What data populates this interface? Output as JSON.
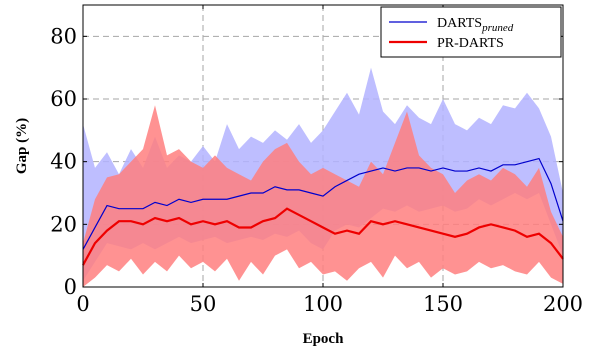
{
  "chart_data": {
    "type": "line",
    "xlabel": "Epoch",
    "ylabel": "Gap (%)",
    "xlim": [
      0,
      200
    ],
    "ylim": [
      0,
      90
    ],
    "xticks": [
      0,
      50,
      100,
      150,
      200
    ],
    "yticks": [
      0,
      20,
      40,
      60,
      80
    ],
    "grid": true,
    "grid_style": "dashed",
    "legend_position": "top-right",
    "series": [
      {
        "name": "DARTS",
        "name_subscript": "pruned",
        "color": "#0000cc",
        "band_color": "#b3b3ff",
        "mean": [
          [
            0,
            12
          ],
          [
            5,
            19
          ],
          [
            10,
            26
          ],
          [
            15,
            25
          ],
          [
            20,
            25
          ],
          [
            25,
            25
          ],
          [
            30,
            27
          ],
          [
            35,
            26
          ],
          [
            40,
            28
          ],
          [
            45,
            27
          ],
          [
            50,
            28
          ],
          [
            55,
            28
          ],
          [
            60,
            28
          ],
          [
            65,
            29
          ],
          [
            70,
            30
          ],
          [
            75,
            30
          ],
          [
            80,
            32
          ],
          [
            85,
            31
          ],
          [
            90,
            31
          ],
          [
            95,
            30
          ],
          [
            100,
            29
          ],
          [
            105,
            32
          ],
          [
            110,
            34
          ],
          [
            115,
            36
          ],
          [
            120,
            37
          ],
          [
            125,
            38
          ],
          [
            130,
            37
          ],
          [
            135,
            38
          ],
          [
            140,
            38
          ],
          [
            145,
            37
          ],
          [
            150,
            38
          ],
          [
            155,
            37
          ],
          [
            160,
            37
          ],
          [
            165,
            38
          ],
          [
            170,
            37
          ],
          [
            175,
            39
          ],
          [
            180,
            39
          ],
          [
            185,
            40
          ],
          [
            190,
            41
          ],
          [
            195,
            33
          ],
          [
            200,
            21
          ]
        ],
        "band_low": [
          [
            0,
            2
          ],
          [
            5,
            8
          ],
          [
            10,
            14
          ],
          [
            15,
            13
          ],
          [
            20,
            12
          ],
          [
            25,
            14
          ],
          [
            30,
            12
          ],
          [
            35,
            14
          ],
          [
            40,
            16
          ],
          [
            45,
            14
          ],
          [
            50,
            15
          ],
          [
            55,
            16
          ],
          [
            60,
            14
          ],
          [
            65,
            15
          ],
          [
            70,
            16
          ],
          [
            75,
            15
          ],
          [
            80,
            17
          ],
          [
            85,
            16
          ],
          [
            90,
            18
          ],
          [
            95,
            14
          ],
          [
            100,
            12
          ],
          [
            105,
            18
          ],
          [
            110,
            20
          ],
          [
            115,
            19
          ],
          [
            120,
            22
          ],
          [
            125,
            25
          ],
          [
            130,
            24
          ],
          [
            135,
            26
          ],
          [
            140,
            24
          ],
          [
            145,
            25
          ],
          [
            150,
            26
          ],
          [
            155,
            24
          ],
          [
            160,
            25
          ],
          [
            165,
            28
          ],
          [
            170,
            26
          ],
          [
            175,
            28
          ],
          [
            180,
            30
          ],
          [
            185,
            28
          ],
          [
            190,
            30
          ],
          [
            195,
            20
          ],
          [
            200,
            10
          ]
        ],
        "band_high": [
          [
            0,
            52
          ],
          [
            5,
            38
          ],
          [
            10,
            43
          ],
          [
            15,
            36
          ],
          [
            20,
            44
          ],
          [
            25,
            38
          ],
          [
            30,
            48
          ],
          [
            35,
            38
          ],
          [
            40,
            42
          ],
          [
            45,
            40
          ],
          [
            50,
            45
          ],
          [
            55,
            40
          ],
          [
            60,
            52
          ],
          [
            65,
            44
          ],
          [
            70,
            48
          ],
          [
            75,
            46
          ],
          [
            80,
            50
          ],
          [
            85,
            47
          ],
          [
            90,
            52
          ],
          [
            95,
            46
          ],
          [
            100,
            50
          ],
          [
            105,
            56
          ],
          [
            110,
            62
          ],
          [
            115,
            55
          ],
          [
            120,
            70
          ],
          [
            125,
            56
          ],
          [
            130,
            52
          ],
          [
            135,
            58
          ],
          [
            140,
            54
          ],
          [
            145,
            52
          ],
          [
            150,
            60
          ],
          [
            155,
            52
          ],
          [
            160,
            50
          ],
          [
            165,
            54
          ],
          [
            170,
            52
          ],
          [
            175,
            58
          ],
          [
            180,
            57
          ],
          [
            185,
            62
          ],
          [
            190,
            57
          ],
          [
            195,
            48
          ],
          [
            200,
            30
          ]
        ]
      },
      {
        "name": "PR-DARTS",
        "color": "#ee0000",
        "band_color": "#ff7f7f",
        "mean": [
          [
            0,
            7
          ],
          [
            5,
            14
          ],
          [
            10,
            18
          ],
          [
            15,
            21
          ],
          [
            20,
            21
          ],
          [
            25,
            20
          ],
          [
            30,
            22
          ],
          [
            35,
            21
          ],
          [
            40,
            22
          ],
          [
            45,
            20
          ],
          [
            50,
            21
          ],
          [
            55,
            20
          ],
          [
            60,
            21
          ],
          [
            65,
            19
          ],
          [
            70,
            19
          ],
          [
            75,
            21
          ],
          [
            80,
            22
          ],
          [
            85,
            25
          ],
          [
            90,
            23
          ],
          [
            95,
            21
          ],
          [
            100,
            19
          ],
          [
            105,
            17
          ],
          [
            110,
            18
          ],
          [
            115,
            17
          ],
          [
            120,
            21
          ],
          [
            125,
            20
          ],
          [
            130,
            21
          ],
          [
            135,
            20
          ],
          [
            140,
            19
          ],
          [
            145,
            18
          ],
          [
            150,
            17
          ],
          [
            155,
            16
          ],
          [
            160,
            17
          ],
          [
            165,
            19
          ],
          [
            170,
            20
          ],
          [
            175,
            19
          ],
          [
            180,
            18
          ],
          [
            185,
            16
          ],
          [
            190,
            17
          ],
          [
            195,
            14
          ],
          [
            200,
            9
          ]
        ],
        "band_low": [
          [
            0,
            0
          ],
          [
            5,
            3
          ],
          [
            10,
            7
          ],
          [
            15,
            5
          ],
          [
            20,
            9
          ],
          [
            25,
            4
          ],
          [
            30,
            8
          ],
          [
            35,
            5
          ],
          [
            40,
            10
          ],
          [
            45,
            6
          ],
          [
            50,
            8
          ],
          [
            55,
            5
          ],
          [
            60,
            9
          ],
          [
            65,
            2
          ],
          [
            70,
            8
          ],
          [
            75,
            4
          ],
          [
            80,
            10
          ],
          [
            85,
            12
          ],
          [
            90,
            6
          ],
          [
            95,
            8
          ],
          [
            100,
            4
          ],
          [
            105,
            5
          ],
          [
            110,
            2
          ],
          [
            115,
            6
          ],
          [
            120,
            8
          ],
          [
            125,
            3
          ],
          [
            130,
            10
          ],
          [
            135,
            6
          ],
          [
            140,
            8
          ],
          [
            145,
            3
          ],
          [
            150,
            6
          ],
          [
            155,
            4
          ],
          [
            160,
            5
          ],
          [
            165,
            8
          ],
          [
            170,
            6
          ],
          [
            175,
            7
          ],
          [
            180,
            5
          ],
          [
            185,
            4
          ],
          [
            190,
            8
          ],
          [
            195,
            3
          ],
          [
            200,
            1
          ]
        ],
        "band_high": [
          [
            0,
            14
          ],
          [
            5,
            28
          ],
          [
            10,
            35
          ],
          [
            15,
            36
          ],
          [
            20,
            40
          ],
          [
            25,
            44
          ],
          [
            30,
            58
          ],
          [
            35,
            42
          ],
          [
            40,
            44
          ],
          [
            45,
            40
          ],
          [
            50,
            38
          ],
          [
            55,
            42
          ],
          [
            60,
            38
          ],
          [
            65,
            36
          ],
          [
            70,
            34
          ],
          [
            75,
            40
          ],
          [
            80,
            44
          ],
          [
            85,
            46
          ],
          [
            90,
            40
          ],
          [
            95,
            36
          ],
          [
            100,
            38
          ],
          [
            105,
            36
          ],
          [
            110,
            34
          ],
          [
            115,
            32
          ],
          [
            120,
            40
          ],
          [
            125,
            36
          ],
          [
            130,
            46
          ],
          [
            135,
            56
          ],
          [
            140,
            42
          ],
          [
            145,
            38
          ],
          [
            150,
            36
          ],
          [
            155,
            30
          ],
          [
            160,
            34
          ],
          [
            165,
            36
          ],
          [
            170,
            34
          ],
          [
            175,
            38
          ],
          [
            180,
            36
          ],
          [
            185,
            32
          ],
          [
            190,
            38
          ],
          [
            195,
            24
          ],
          [
            200,
            16
          ]
        ]
      }
    ]
  }
}
